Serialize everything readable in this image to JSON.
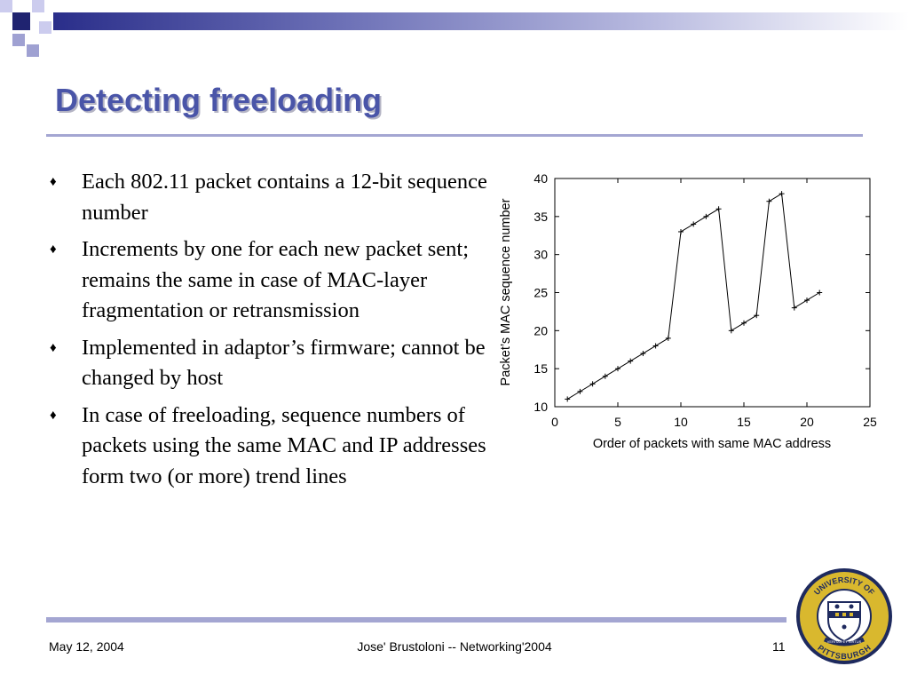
{
  "slide": {
    "title": "Detecting freeloading",
    "bullets": [
      "Each 802.11 packet contains a 12-bit sequence number",
      "Increments by one for each new packet sent; remains the same in case of MAC-layer fragmentation or retransmission",
      "Implemented in adaptor’s firmware; cannot be changed by host",
      "In case of freeloading, sequence numbers of packets using the same MAC and IP addresses form two (or more) trend lines"
    ],
    "bullet_icon": "diamond-bullet-icon",
    "accent_color": "#4a55a8"
  },
  "footer": {
    "date": "May 12, 2004",
    "center": "Jose' Brustoloni -- Networking'2004",
    "page": "11"
  },
  "logo": {
    "name": "university-seal",
    "text_top": "UNIVERSITY OF",
    "text_bottom": "PITTSBURGH",
    "text_ribbon": "VERITAS ET VIRTUS"
  },
  "chart_data": {
    "type": "line",
    "xlabel": "Order of packets with same MAC address",
    "ylabel": "Packet’s MAC sequence number",
    "xlim": [
      0,
      25
    ],
    "ylim": [
      10,
      40
    ],
    "xticks": [
      0,
      5,
      10,
      15,
      20,
      25
    ],
    "yticks": [
      10,
      15,
      20,
      25,
      30,
      35,
      40
    ],
    "grid": false,
    "series": [
      {
        "x": [
          1,
          2,
          3,
          4,
          5,
          6,
          7,
          8,
          9,
          10,
          11,
          12,
          13,
          14,
          15,
          16,
          17,
          18,
          19,
          20,
          21
        ],
        "y": [
          11,
          12,
          13,
          14,
          15,
          16,
          17,
          18,
          19,
          33,
          34,
          35,
          36,
          20,
          21,
          22,
          37,
          38,
          23,
          24,
          25
        ]
      }
    ]
  }
}
